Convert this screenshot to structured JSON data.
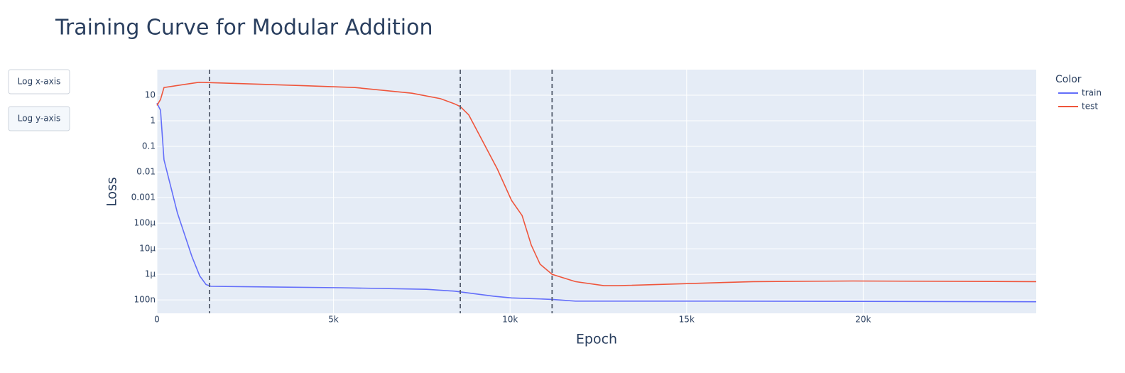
{
  "chart_data": {
    "type": "line",
    "title": "Training Curve for Modular Addition",
    "x_label": "Epoch",
    "y_label": "Loss",
    "legend_title": "Color",
    "buttons": [
      "Log x-axis",
      "Log y-axis"
    ],
    "log_y": true,
    "grid": true,
    "xlim": [
      0,
      24900
    ],
    "ylim": [
      3e-08,
      100
    ],
    "xticks": [
      0,
      {
        "value": 5000,
        "label": "5k"
      },
      {
        "value": 10000,
        "label": "10k"
      },
      {
        "value": 15000,
        "label": "15k"
      },
      {
        "value": 20000,
        "label": "20k"
      }
    ],
    "yticks": [
      10,
      1,
      0.1,
      0.01,
      0.001,
      {
        "value": 0.0001,
        "label": "100µ"
      },
      {
        "value": 1e-05,
        "label": "10µ"
      },
      {
        "value": 1e-06,
        "label": "1µ"
      },
      {
        "value": 1e-07,
        "label": "100n"
      }
    ],
    "vlines": [
      1490,
      8590,
      11190
    ],
    "vline_color": "#555e6e",
    "series": [
      {
        "name": "train",
        "color": "#636efa",
        "x": [
          0,
          100,
          200,
          580,
          990,
          1210,
          1390,
          1530,
          5210,
          7630,
          8430,
          9540,
          10040,
          11190,
          11850,
          15670,
          24900
        ],
        "values": [
          4.9,
          2.6,
          0.03,
          0.00025,
          5e-06,
          8.7e-07,
          4e-07,
          3.4e-07,
          3e-07,
          2.6e-07,
          2.2e-07,
          1.4e-07,
          1.2e-07,
          1.05e-07,
          9e-08,
          9e-08,
          8.5e-08
        ]
      },
      {
        "name": "test",
        "color": "#ef553b",
        "x": [
          0,
          100,
          200,
          1190,
          4000,
          5610,
          7220,
          8030,
          8430,
          8590,
          8830,
          9130,
          9640,
          10040,
          10340,
          10600,
          10850,
          11190,
          11850,
          12660,
          13060,
          16880,
          19700,
          24900
        ],
        "values": [
          4,
          6.8,
          20,
          32,
          24,
          20,
          12,
          7.3,
          4.6,
          3.6,
          1.7,
          0.28,
          0.013,
          0.00078,
          0.0002,
          1.4e-05,
          2.5e-06,
          1e-06,
          5.2e-07,
          3.6e-07,
          3.6e-07,
          5.2e-07,
          5.5e-07,
          5.2e-07
        ]
      }
    ]
  }
}
